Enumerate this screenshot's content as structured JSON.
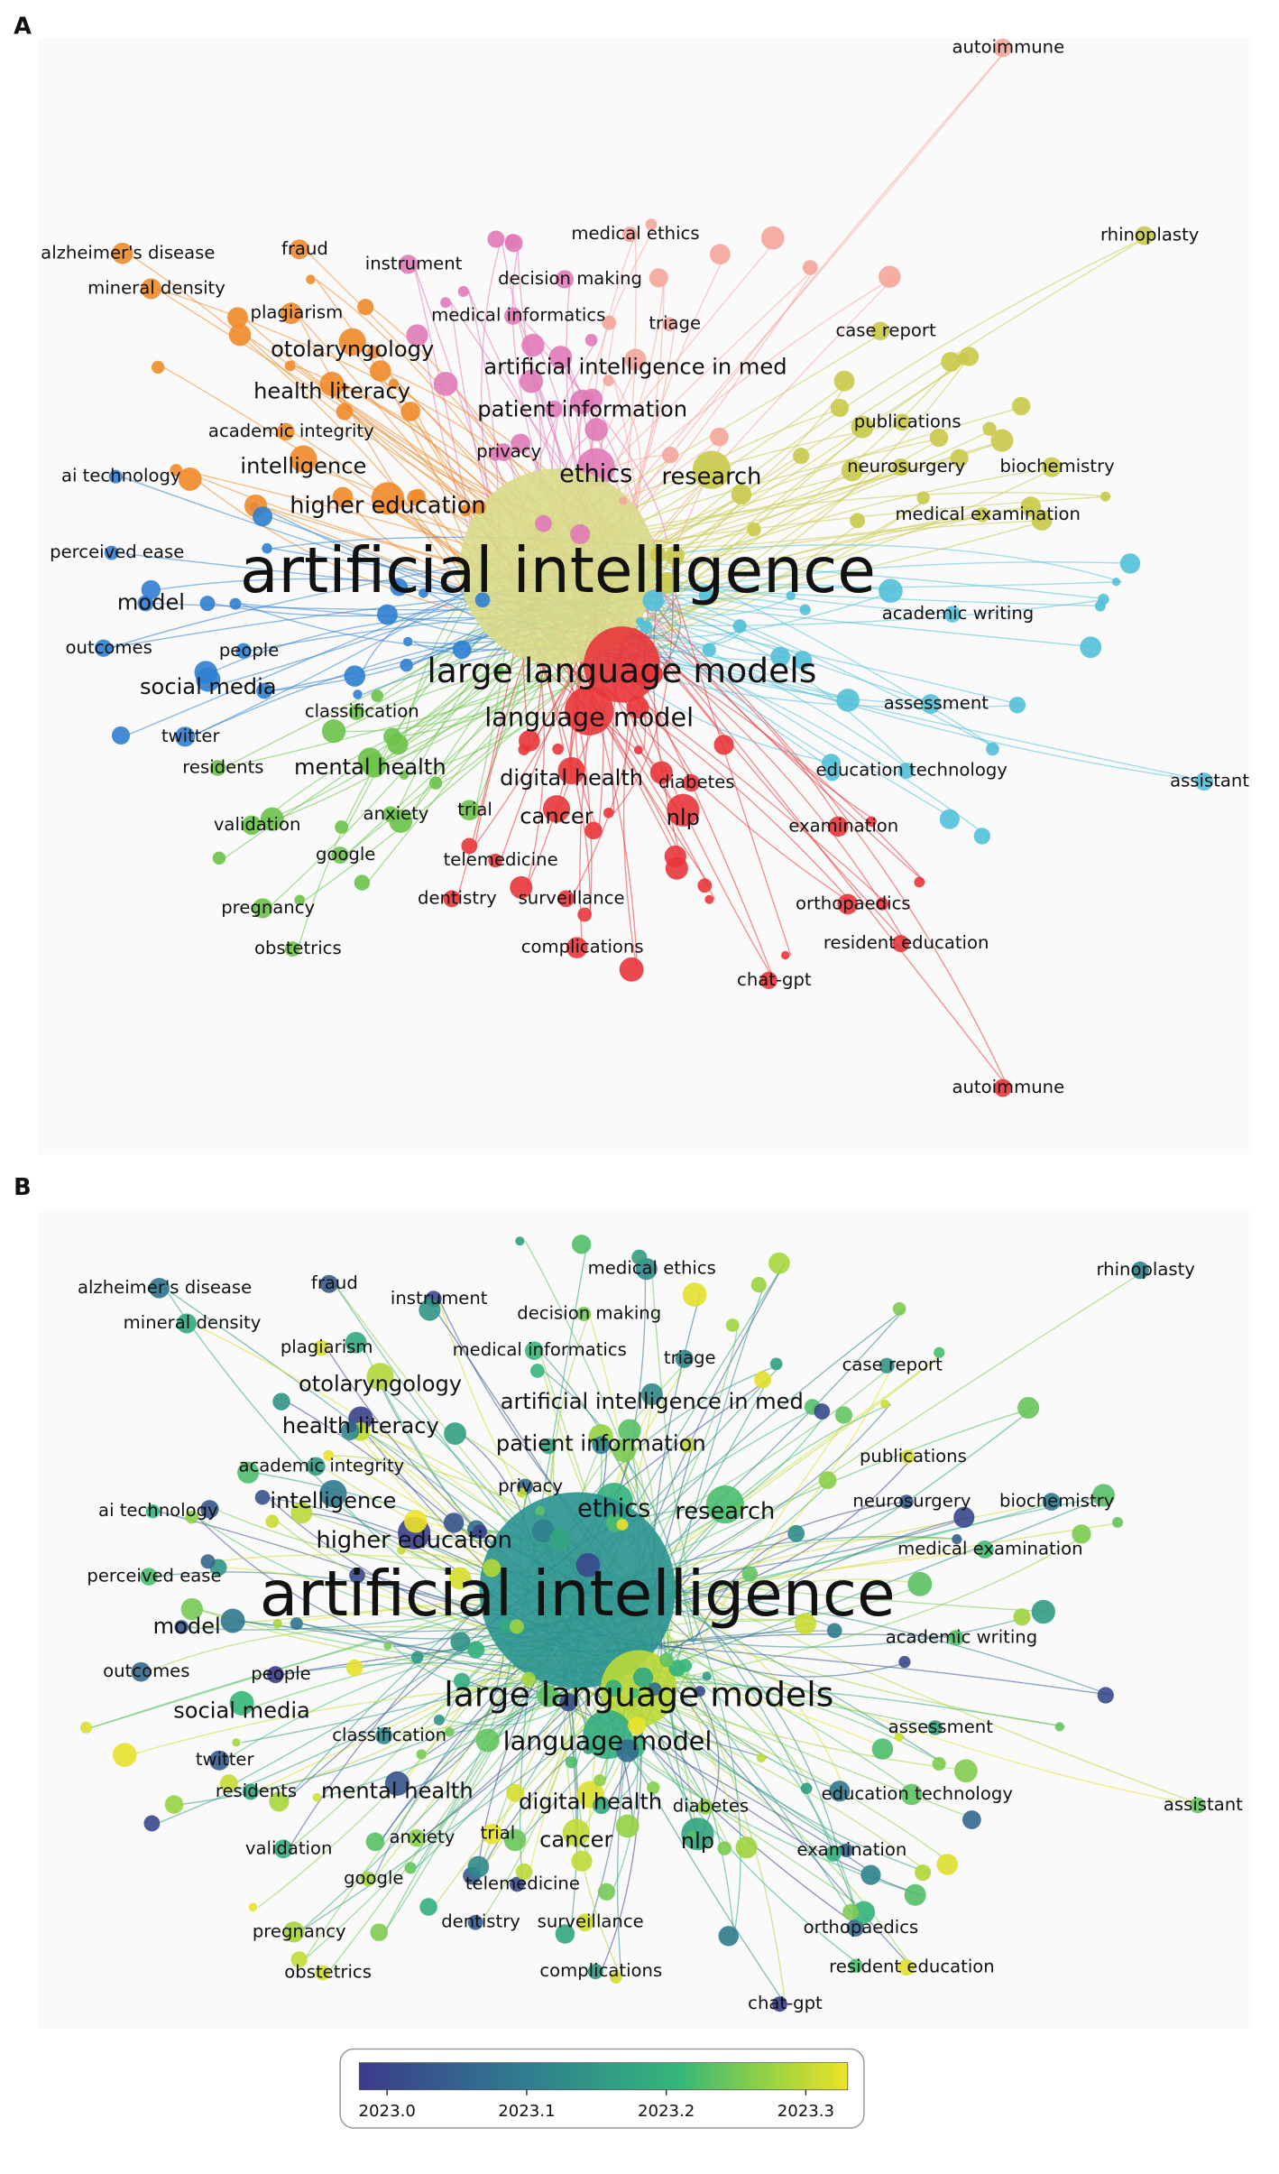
{
  "panels": [
    {
      "letter": "A",
      "labels": [
        "autoimmune",
        "rhinoplasty",
        "alzheimer's disease",
        "fraud",
        "instrument",
        "medical ethics",
        "decision making",
        "mineral density",
        "plagiarism",
        "medical informatics",
        "triage",
        "case report",
        "otolaryngology",
        "artificial intelligence in med",
        "health literacy",
        "patient information",
        "publications",
        "academic integrity",
        "privacy",
        "intelligence",
        "neurosurgery",
        "biochemistry",
        "ai technology",
        "ethics",
        "research",
        "higher education",
        "medical examination",
        "perceived ease",
        "artificial intelligence",
        "model",
        "academic writing",
        "outcomes",
        "people",
        "large language models",
        "social media",
        "assessment",
        "classification",
        "language model",
        "twitter",
        "residents",
        "mental health",
        "education technology",
        "digital health",
        "diabetes",
        "assistant",
        "anxiety",
        "trial",
        "validation",
        "cancer",
        "nlp",
        "examination",
        "google",
        "telemedicine",
        "orthopaedics",
        "pregnancy",
        "dentistry",
        "surveillance",
        "resident education",
        "obstetrics",
        "complications",
        "chat-gpt",
        "autoimmune"
      ]
    },
    {
      "letter": "B",
      "labels": [
        "rhinoplasty",
        "alzheimer's disease",
        "fraud",
        "instrument",
        "medical ethics",
        "decision making",
        "mineral density",
        "plagiarism",
        "medical informatics",
        "triage",
        "case report",
        "otolaryngology",
        "artificial intelligence in med",
        "health literacy",
        "patient information",
        "publications",
        "academic integrity",
        "privacy",
        "intelligence",
        "neurosurgery",
        "biochemistry",
        "ai technology",
        "ethics",
        "research",
        "higher education",
        "medical examination",
        "perceived ease",
        "artificial intelligence",
        "model",
        "academic writing",
        "outcomes",
        "people",
        "large language models",
        "social media",
        "assessment",
        "classification",
        "language model",
        "twitter",
        "residents",
        "mental health",
        "education technology",
        "digital health",
        "diabetes",
        "assistant",
        "anxiety",
        "trial",
        "validation",
        "cancer",
        "nlp",
        "examination",
        "google",
        "telemedicine",
        "orthopaedics",
        "pregnancy",
        "dentistry",
        "surveillance",
        "resident education",
        "obstetrics",
        "complications",
        "chat-gpt"
      ]
    }
  ],
  "colorbar": {
    "lim": [
      2022.98,
      2023.33
    ],
    "ticks": [
      {
        "value": 2023.0,
        "label": "2023.0"
      },
      {
        "value": 2023.1,
        "label": "2023.1"
      },
      {
        "value": 2023.2,
        "label": "2023.2"
      },
      {
        "value": 2023.3,
        "label": "2023.3"
      }
    ]
  }
}
